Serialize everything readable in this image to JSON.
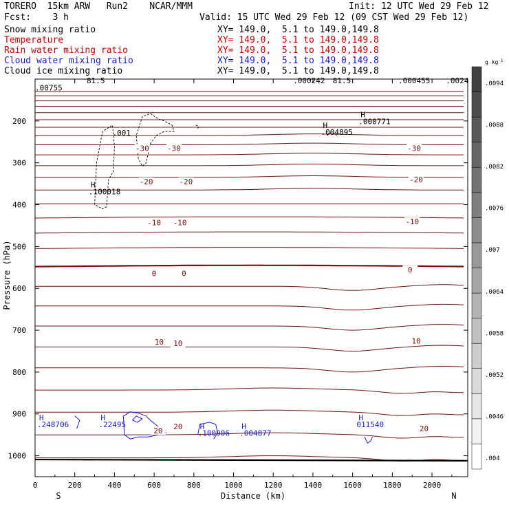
{
  "header": {
    "line1_left": "TORERO  15km ARW   Run2    NCAR/MMM",
    "line1_right": "Init: 12 UTC Wed 29 Feb 12",
    "line2_left": "Fcst:    3 h",
    "line2_right": "Valid: 15 UTC Wed 29 Feb 12 (09 CST Wed 29 Feb 12)",
    "fields": [
      {
        "name": "Snow mixing ratio",
        "xy": "XY= 149.0,  5.1 to 149.0,149.8",
        "color": "#000000"
      },
      {
        "name": "Temperature",
        "xy": "XY= 149.0,  5.1 to 149.0,149.8",
        "color": "#cc0000"
      },
      {
        "name": "Rain water mixing ratio",
        "xy": "XY= 149.0,  5.1 to 149.0,149.8",
        "color": "#cc0000"
      },
      {
        "name": "Cloud water mixing ratio",
        "xy": "XY= 149.0,  5.1 to 149.0,149.8",
        "color": "#1a1acc"
      },
      {
        "name": "Cloud ice mixing ratio",
        "xy": "XY= 149.0,  5.1 to 149.0,149.8",
        "color": "#000000"
      }
    ]
  },
  "chart_data": {
    "type": "contour-cross-section",
    "xlabel": "Distance (km)",
    "ylabel": "Pressure (hPa)",
    "xlim": [
      0,
      2180
    ],
    "ylim": [
      1050,
      100
    ],
    "xticks": [
      0,
      200,
      400,
      600,
      800,
      1000,
      1200,
      1400,
      1600,
      1800,
      2000
    ],
    "yticks": [
      200,
      300,
      400,
      500,
      600,
      700,
      800,
      900,
      1000
    ],
    "x_end_labels": {
      "left": "S",
      "right": "N"
    },
    "colorbar": {
      "unit": "g kg",
      "unit_exp": "-1",
      "labels": [
        ".004",
        ".0046",
        ".0052",
        ".0058",
        ".0064",
        ".007",
        ".0076",
        ".0082",
        ".0088",
        ".0094"
      ],
      "shades": [
        "#ffffff",
        "#f2f2f2",
        "#e5e5e5",
        "#d9d9d9",
        "#cccccc",
        "#bfbfbf",
        "#b3b3b3",
        "#a6a6a6",
        "#999999",
        "#8c8c8c",
        "#7f7f7f",
        "#737373",
        "#666666",
        "#595959",
        "#4d4d4d",
        "#404040"
      ]
    },
    "temperature_labels": [
      {
        "text": "-30",
        "x": 540,
        "p": 265
      },
      {
        "text": "-30",
        "x": 700,
        "p": 265
      },
      {
        "text": "-30",
        "x": 1910,
        "p": 265
      },
      {
        "text": "-20",
        "x": 560,
        "p": 345
      },
      {
        "text": "-20",
        "x": 760,
        "p": 345
      },
      {
        "text": "-20",
        "x": 1920,
        "p": 340
      },
      {
        "text": "-10",
        "x": 600,
        "p": 443
      },
      {
        "text": "-10",
        "x": 730,
        "p": 443
      },
      {
        "text": "-10",
        "x": 1900,
        "p": 440
      },
      {
        "text": "0",
        "x": 600,
        "p": 564
      },
      {
        "text": "0",
        "x": 750,
        "p": 564
      },
      {
        "text": "0",
        "x": 1890,
        "p": 555
      },
      {
        "text": "10",
        "x": 625,
        "p": 728
      },
      {
        "text": "10",
        "x": 720,
        "p": 731
      },
      {
        "text": "10",
        "x": 1920,
        "p": 725
      },
      {
        "text": "20",
        "x": 620,
        "p": 940
      },
      {
        "text": "20",
        "x": 720,
        "p": 930
      },
      {
        "text": "20",
        "x": 1960,
        "p": 935
      }
    ],
    "maxima": [
      {
        "text": ".00755",
        "x": 0,
        "p": 127,
        "mark": "",
        "color": "#000000"
      },
      {
        "text": "81.5",
        "x": 260,
        "p": 110,
        "mark": "",
        "color": "#000000"
      },
      {
        "text": ".000242",
        "x": 1300,
        "p": 110,
        "mark": "",
        "color": "#000000"
      },
      {
        "text": "81.5",
        "x": 1500,
        "p": 110,
        "mark": "",
        "color": "#000000"
      },
      {
        "text": ".000455",
        "x": 1830,
        "p": 110,
        "mark": "",
        "color": "#000000"
      },
      {
        "text": ".0024",
        "x": 2070,
        "p": 110,
        "mark": "",
        "color": "#000000"
      },
      {
        "text": ".000771",
        "x": 1630,
        "p": 208,
        "mark": "H",
        "color": "#000000"
      },
      {
        "text": ".004895",
        "x": 1440,
        "p": 233,
        "mark": "H",
        "color": "#000000"
      },
      {
        "text": ".001",
        "x": 390,
        "p": 235,
        "mark": "",
        "color": "#000000"
      },
      {
        "text": ".100018",
        "x": 270,
        "p": 375,
        "mark": "H",
        "color": "#000000"
      },
      {
        "text": ".248706",
        "x": 10,
        "p": 932,
        "mark": "H",
        "color": "#1a1acc"
      },
      {
        "text": ".22495",
        "x": 320,
        "p": 932,
        "mark": "H",
        "color": "#1a1acc"
      },
      {
        "text": ".100906",
        "x": 820,
        "p": 952,
        "mark": "H",
        "color": "#1a1acc"
      },
      {
        "text": ".004877",
        "x": 1030,
        "p": 952,
        "mark": "H",
        "color": "#1a1acc"
      },
      {
        "text": "011540",
        "x": 1620,
        "p": 932,
        "mark": "H",
        "color": "#1a1acc"
      }
    ]
  }
}
